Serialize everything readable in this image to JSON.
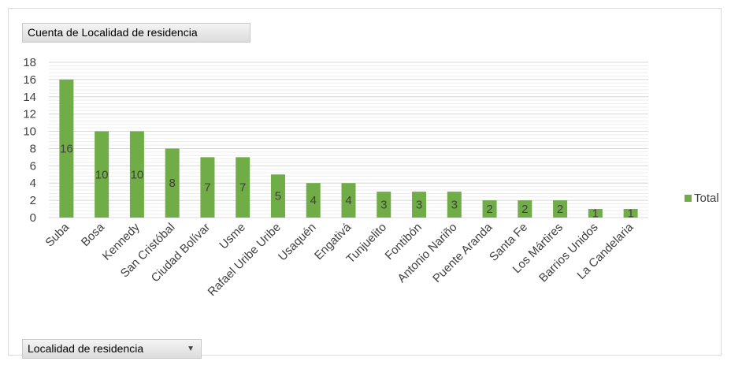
{
  "header": {
    "value_field_label": "Cuenta de Localidad de residencia"
  },
  "footer": {
    "axis_field_label": "Localidad de residencia",
    "axis_field_arrow": "▼"
  },
  "legend": {
    "label": "Total",
    "position": "right"
  },
  "colors": {
    "bar": "#70ad47",
    "gridline": "#d9d9d9"
  },
  "chart_data": {
    "type": "bar",
    "categories": [
      "Suba",
      "Bosa",
      "Kennedy",
      "San Cristóbal",
      "Ciudad Bolívar",
      "Usme",
      "Rafael Uribe Uribe",
      "Usaquén",
      "Engativá",
      "Tunjuelito",
      "Fontibón",
      "Antonio Nariño",
      "Puente Aranda",
      "Santa Fe",
      "Los Mártires",
      "Barrios Unidos",
      "La Candelaria"
    ],
    "series": [
      {
        "name": "Total",
        "values": [
          16,
          10,
          10,
          8,
          7,
          7,
          5,
          4,
          4,
          3,
          3,
          3,
          2,
          2,
          2,
          1,
          1
        ]
      }
    ],
    "yticks": [
      0,
      2,
      4,
      6,
      8,
      10,
      12,
      14,
      16,
      18
    ],
    "ylim": [
      0,
      18
    ],
    "grid": true,
    "minor_grid": true,
    "data_labels": true
  }
}
